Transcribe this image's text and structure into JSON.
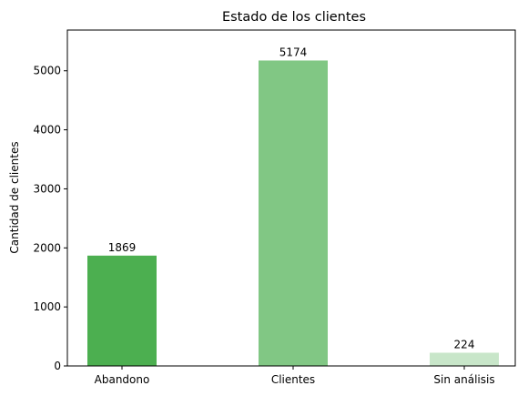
{
  "chart_data": {
    "type": "bar",
    "title": "Estado de los clientes",
    "xlabel": "",
    "ylabel": "Cantidad de clientes",
    "categories": [
      "Abandono",
      "Clientes",
      "Sin análisis"
    ],
    "values": [
      1869,
      5174,
      224
    ],
    "data_labels": [
      "1869",
      "5174",
      "224"
    ],
    "bar_colors": [
      "#4caf50",
      "#81c784",
      "#c8e6c9"
    ],
    "ylim": [
      0,
      5690
    ],
    "yticks": [
      0,
      1000,
      2000,
      3000,
      4000,
      5000
    ],
    "ytick_labels": [
      "0",
      "1000",
      "2000",
      "3000",
      "4000",
      "5000"
    ],
    "grid": false,
    "legend": "none"
  }
}
